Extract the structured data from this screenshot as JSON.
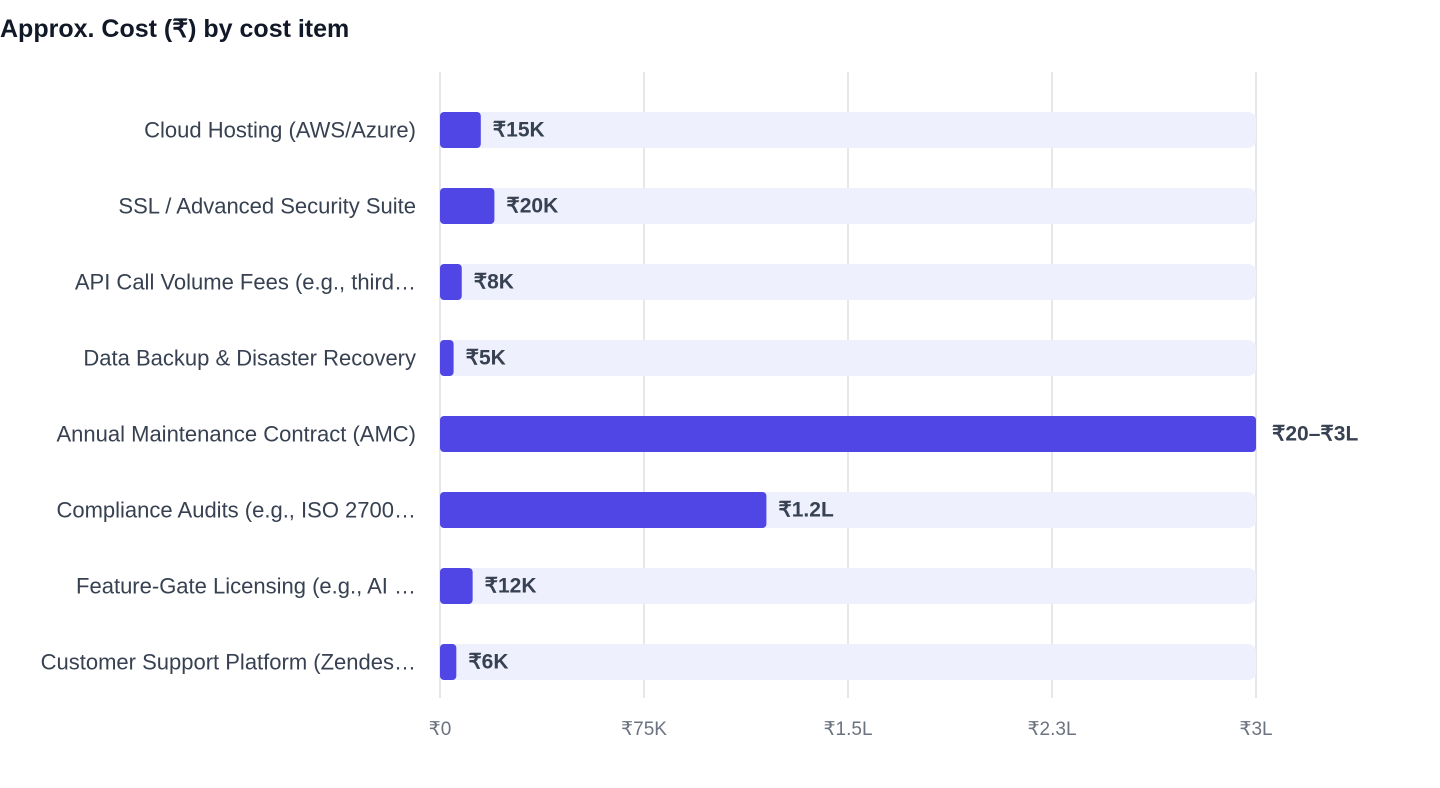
{
  "chart_data": {
    "type": "bar",
    "orientation": "horizontal",
    "title": "Approx. Cost (₹) by cost item",
    "categories": [
      "Cloud Hosting (AWS/Azure)",
      "SSL / Advanced Security Suite",
      "API Call Volume Fees (e.g., third…",
      "Data Backup & Disaster Recovery",
      "Annual Maintenance Contract (AMC)",
      "Compliance Audits (e.g., ISO 2700…",
      "Feature-Gate Licensing (e.g., AI …",
      "Customer Support Platform (Zendes…"
    ],
    "values": [
      15000,
      20000,
      8000,
      5000,
      300000,
      120000,
      12000,
      6000
    ],
    "value_labels": [
      "₹15K",
      "₹20K",
      "₹8K",
      "₹5K",
      "₹20–₹3L",
      "₹1.2L",
      "₹12K",
      "₹6K"
    ],
    "xlim": [
      0,
      300000
    ],
    "x_ticks": [
      0,
      75000,
      150000,
      225000,
      300000
    ],
    "x_tick_labels": [
      "₹0",
      "₹75K",
      "₹1.5L",
      "₹2.3L",
      "₹3L"
    ],
    "grid": true,
    "colors": {
      "bar": "#4f46e5",
      "track": "#eef1fd",
      "grid": "#e5e7eb"
    }
  }
}
